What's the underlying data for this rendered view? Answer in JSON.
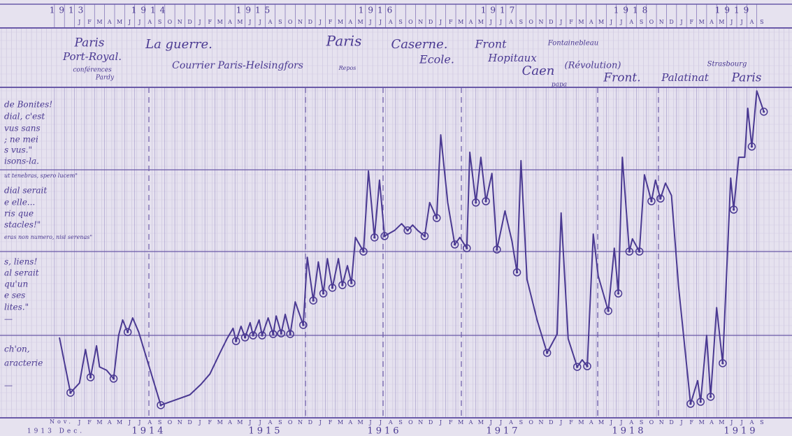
{
  "chart_data": {
    "type": "line",
    "top_years": [
      "1913",
      "1914",
      "1915",
      "1916",
      "1917",
      "1918",
      "1919"
    ],
    "bottom_labels": [
      "Nov.",
      "1913 Dec.",
      "1914",
      "1915",
      "1916",
      "1917",
      "1918",
      "1919"
    ],
    "month_letters": [
      "J",
      "F",
      "M",
      "A",
      "M",
      "J",
      "J",
      "A",
      "S",
      "O",
      "N",
      "D"
    ],
    "annotations": [
      "Paris",
      "Port-Royal.",
      "conférences",
      "Pardy",
      "La guerre.",
      "Courrier Paris-Helsingfors",
      "Paris",
      "Caserne.",
      "Ecole.",
      "Front",
      "Hopitaux",
      "Caen",
      "Fontainebleau",
      "(Révolution)",
      "Front.",
      "Palatinat",
      "Strasbourg",
      "Paris",
      "Repos",
      "papa"
    ],
    "margin_notes": [
      "de Bonites!",
      "dial, c'est",
      "vus sans",
      "; ne mei",
      "s vus.\"",
      "isons-la.",
      "ut tenebras, spero lucem\"",
      "dial serait",
      "e elle...",
      "ris que",
      "stacles!\"",
      "eras non numero, nisi serenas\"",
      "s, liens!",
      "al serait",
      "qu'un",
      "e ses",
      "lites.\"",
      "—",
      "ch'on,",
      "aracterie",
      "—"
    ],
    "x": [
      0,
      1.1,
      2.0,
      2.6,
      3.1,
      3.7,
      4.0,
      4.7,
      5.4,
      5.9,
      6.3,
      6.8,
      7.3,
      7.9,
      10.1,
      13.0,
      14.1,
      15.0,
      16.0,
      16.7,
      17.3,
      17.6,
      18.1,
      18.5,
      19.0,
      19.3,
      19.9,
      20.2,
      20.8,
      21.3,
      21.6,
      22.1,
      22.5,
      23.0,
      23.5,
      24.3,
      24.7,
      25.3,
      25.8,
      26.3,
      26.7,
      27.2,
      27.8,
      28.2,
      28.7,
      29.1,
      29.5,
      30.3,
      30.8,
      31.4,
      31.9,
      32.4,
      33.4,
      34.1,
      34.7,
      35.2,
      35.7,
      36.4,
      36.9,
      37.6,
      38.0,
      38.7,
      39.4,
      39.9,
      40.6,
      40.9,
      41.5,
      42.0,
      42.5,
      43.1,
      43.6,
      44.4,
      45.1,
      45.6,
      46.0,
      46.6,
      47.6,
      48.6,
      49.6,
      50.0,
      50.7,
      51.6,
      52.1,
      52.6,
      53.2,
      53.7,
      54.7,
      55.3,
      55.7,
      56.1,
      56.8,
      57.1,
      57.8,
      58.3,
      59.0,
      59.4,
      59.9,
      60.4,
      61.0,
      61.7,
      62.9,
      63.6,
      63.9,
      64.5,
      64.9,
      65.5,
      66.1,
      66.6,
      66.9,
      67.2,
      67.7,
      68.3,
      68.6,
      69.0,
      69.5,
      70.2
    ],
    "series": [
      {
        "color": "#4a3992",
        "values": [
          24.4,
          7.9,
          10.8,
          20.8,
          12.5,
          21.9,
          15.6,
          14.6,
          12.1,
          25.0,
          29.6,
          26.0,
          30.2,
          26.0,
          4.2,
          7.3,
          10.4,
          13.5,
          19.8,
          24.0,
          27.1,
          23.3,
          27.7,
          24.4,
          28.8,
          25.0,
          29.6,
          25.0,
          30.2,
          25.4,
          30.8,
          25.6,
          31.3,
          25.4,
          35.0,
          28.1,
          48.3,
          35.4,
          46.9,
          37.5,
          47.9,
          39.2,
          47.9,
          40.0,
          45.8,
          40.6,
          54.2,
          50.0,
          74.0,
          54.2,
          71.3,
          54.6,
          56.3,
          58.3,
          56.3,
          57.9,
          56.3,
          54.6,
          64.6,
          60.0,
          84.8,
          64.6,
          52.1,
          54.2,
          51.0,
          79.6,
          64.6,
          78.1,
          65.0,
          73.3,
          50.6,
          62.1,
          53.1,
          43.8,
          77.1,
          41.7,
          29.6,
          19.8,
          25.4,
          61.5,
          24.0,
          15.6,
          17.7,
          15.8,
          55.2,
          42.7,
          32.3,
          51.0,
          37.5,
          78.1,
          50.0,
          53.8,
          50.0,
          72.9,
          65.0,
          71.3,
          65.8,
          70.4,
          66.7,
          39.6,
          4.6,
          11.5,
          5.2,
          25.0,
          6.7,
          33.3,
          16.7,
          51.0,
          71.9,
          62.5,
          78.1,
          78.1,
          92.7,
          81.3,
          97.9,
          91.7
        ]
      }
    ],
    "xlim": [
      -0.35,
      70.5
    ],
    "ylim": [
      0,
      100
    ]
  }
}
